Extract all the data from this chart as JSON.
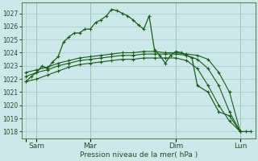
{
  "background_color": "#cce8e8",
  "grid_color": "#aad0d0",
  "line_color": "#1a5c1a",
  "xlabel": "Pression niveau de la mer( hPa )",
  "ylim": [
    1017.5,
    1027.8
  ],
  "yticks": [
    1018,
    1019,
    1020,
    1021,
    1022,
    1023,
    1024,
    1025,
    1026,
    1027
  ],
  "xtick_positions": [
    0,
    0.5,
    3,
    7,
    10
  ],
  "xtick_labels": [
    "",
    "Sam",
    "Mar",
    "Dim",
    "Lun"
  ],
  "series": [
    {
      "x": [
        0,
        0.25,
        0.5,
        0.75,
        1.0,
        1.25,
        1.5,
        1.75,
        2.0,
        2.25,
        2.5,
        2.75,
        3.0,
        3.25,
        3.5,
        3.75,
        4.0,
        4.25,
        4.5,
        4.75,
        5.0,
        5.25,
        5.5,
        5.75,
        6.0,
        6.25,
        6.5,
        6.75,
        7.0,
        7.25,
        7.5,
        7.75,
        8.0,
        8.5,
        9.0,
        9.5,
        10.0,
        10.25,
        10.5
      ],
      "y": [
        1021.8,
        1022.2,
        1022.5,
        1023.0,
        1022.8,
        1023.3,
        1023.7,
        1024.8,
        1025.2,
        1025.5,
        1025.5,
        1025.8,
        1025.8,
        1026.3,
        1026.5,
        1026.8,
        1027.3,
        1027.2,
        1027.0,
        1026.8,
        1026.5,
        1026.1,
        1025.8,
        1026.8,
        1024.2,
        1023.8,
        1023.2,
        1023.8,
        1024.1,
        1024.0,
        1023.8,
        1023.6,
        1021.5,
        1021.0,
        1019.5,
        1019.2,
        1018.0,
        1018.0,
        1018.0
      ]
    },
    {
      "x": [
        0,
        0.5,
        1.0,
        1.5,
        2.0,
        2.5,
        3.0,
        3.5,
        4.0,
        4.5,
        5.0,
        5.5,
        6.0,
        6.5,
        7.0,
        7.5,
        8.0,
        8.5,
        9.0,
        9.5,
        10.0
      ],
      "y": [
        1022.5,
        1022.7,
        1022.9,
        1023.2,
        1023.4,
        1023.6,
        1023.7,
        1023.8,
        1023.9,
        1024.0,
        1024.0,
        1024.1,
        1024.1,
        1024.0,
        1024.0,
        1023.9,
        1023.8,
        1023.5,
        1022.5,
        1021.0,
        1018.0
      ]
    },
    {
      "x": [
        0,
        0.5,
        1.0,
        1.5,
        2.0,
        2.5,
        3.0,
        3.5,
        4.0,
        4.5,
        5.0,
        5.5,
        6.0,
        6.5,
        7.0,
        7.5,
        8.0,
        8.5,
        9.0,
        9.5,
        10.0
      ],
      "y": [
        1022.2,
        1022.5,
        1022.7,
        1023.0,
        1023.2,
        1023.4,
        1023.5,
        1023.6,
        1023.7,
        1023.8,
        1023.8,
        1023.9,
        1023.9,
        1023.9,
        1023.9,
        1023.8,
        1023.5,
        1022.8,
        1021.5,
        1019.5,
        1018.0
      ]
    },
    {
      "x": [
        0,
        0.5,
        1.0,
        1.5,
        2.0,
        2.5,
        3.0,
        3.5,
        4.0,
        4.5,
        5.0,
        5.5,
        6.0,
        6.5,
        7.0,
        7.5,
        8.0,
        8.5,
        9.0,
        9.5,
        10.0
      ],
      "y": [
        1021.8,
        1022.0,
        1022.3,
        1022.6,
        1022.9,
        1023.1,
        1023.2,
        1023.3,
        1023.4,
        1023.5,
        1023.5,
        1023.6,
        1023.6,
        1023.6,
        1023.6,
        1023.4,
        1022.8,
        1021.5,
        1020.0,
        1018.8,
        1018.0
      ]
    }
  ]
}
